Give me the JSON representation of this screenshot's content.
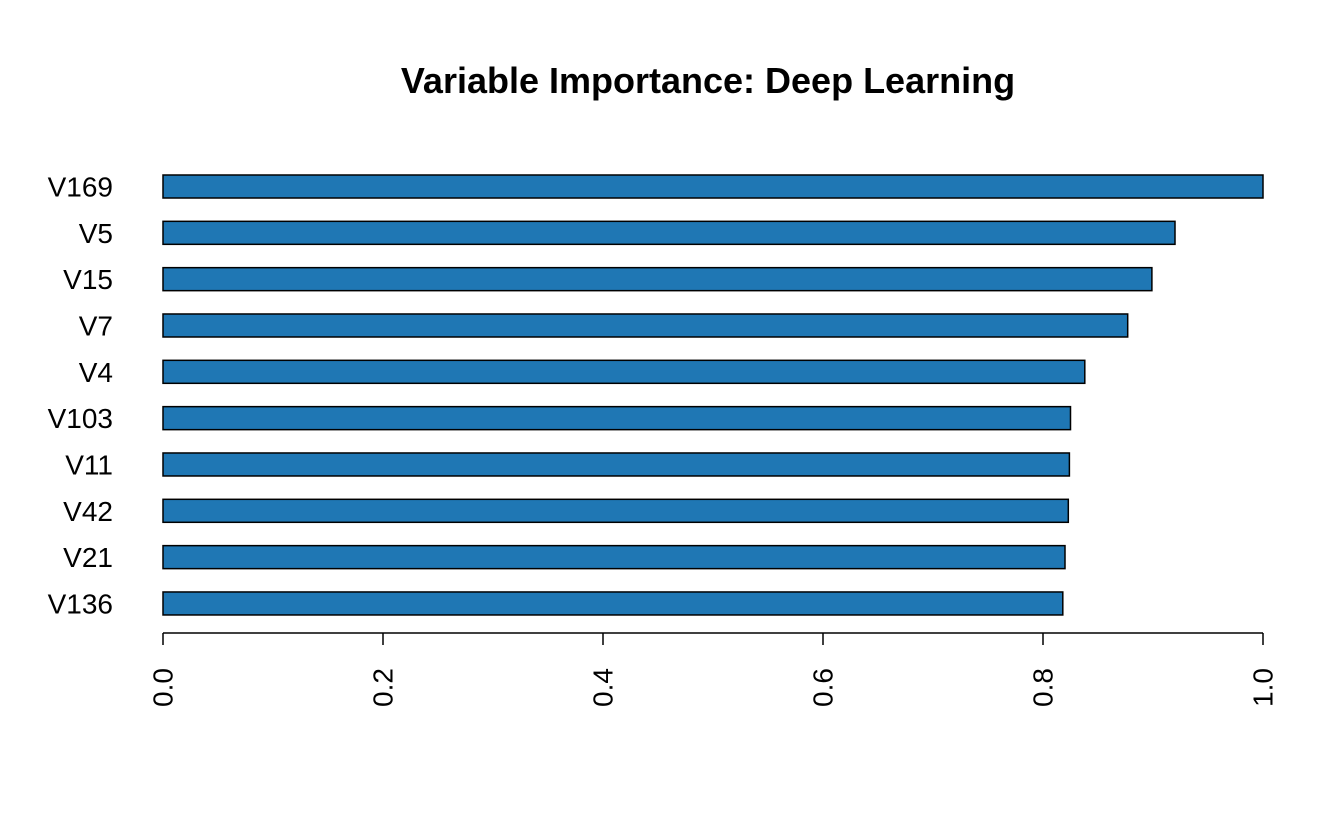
{
  "chart_data": {
    "type": "bar",
    "orientation": "horizontal",
    "title": "Variable Importance: Deep Learning",
    "xlabel": "",
    "ylabel": "",
    "categories": [
      "V169",
      "V5",
      "V15",
      "V7",
      "V4",
      "V103",
      "V11",
      "V42",
      "V21",
      "V136"
    ],
    "values": [
      1.0,
      0.92,
      0.899,
      0.877,
      0.838,
      0.825,
      0.824,
      0.823,
      0.82,
      0.818
    ],
    "xlim": [
      0,
      1
    ],
    "xticks": [
      "0.0",
      "0.2",
      "0.4",
      "0.6",
      "0.8",
      "1.0"
    ],
    "tick_values": [
      0,
      0.2,
      0.4,
      0.6,
      0.8,
      1.0
    ],
    "bar_color": "#1f77b4",
    "grid": false,
    "legend": "none"
  }
}
